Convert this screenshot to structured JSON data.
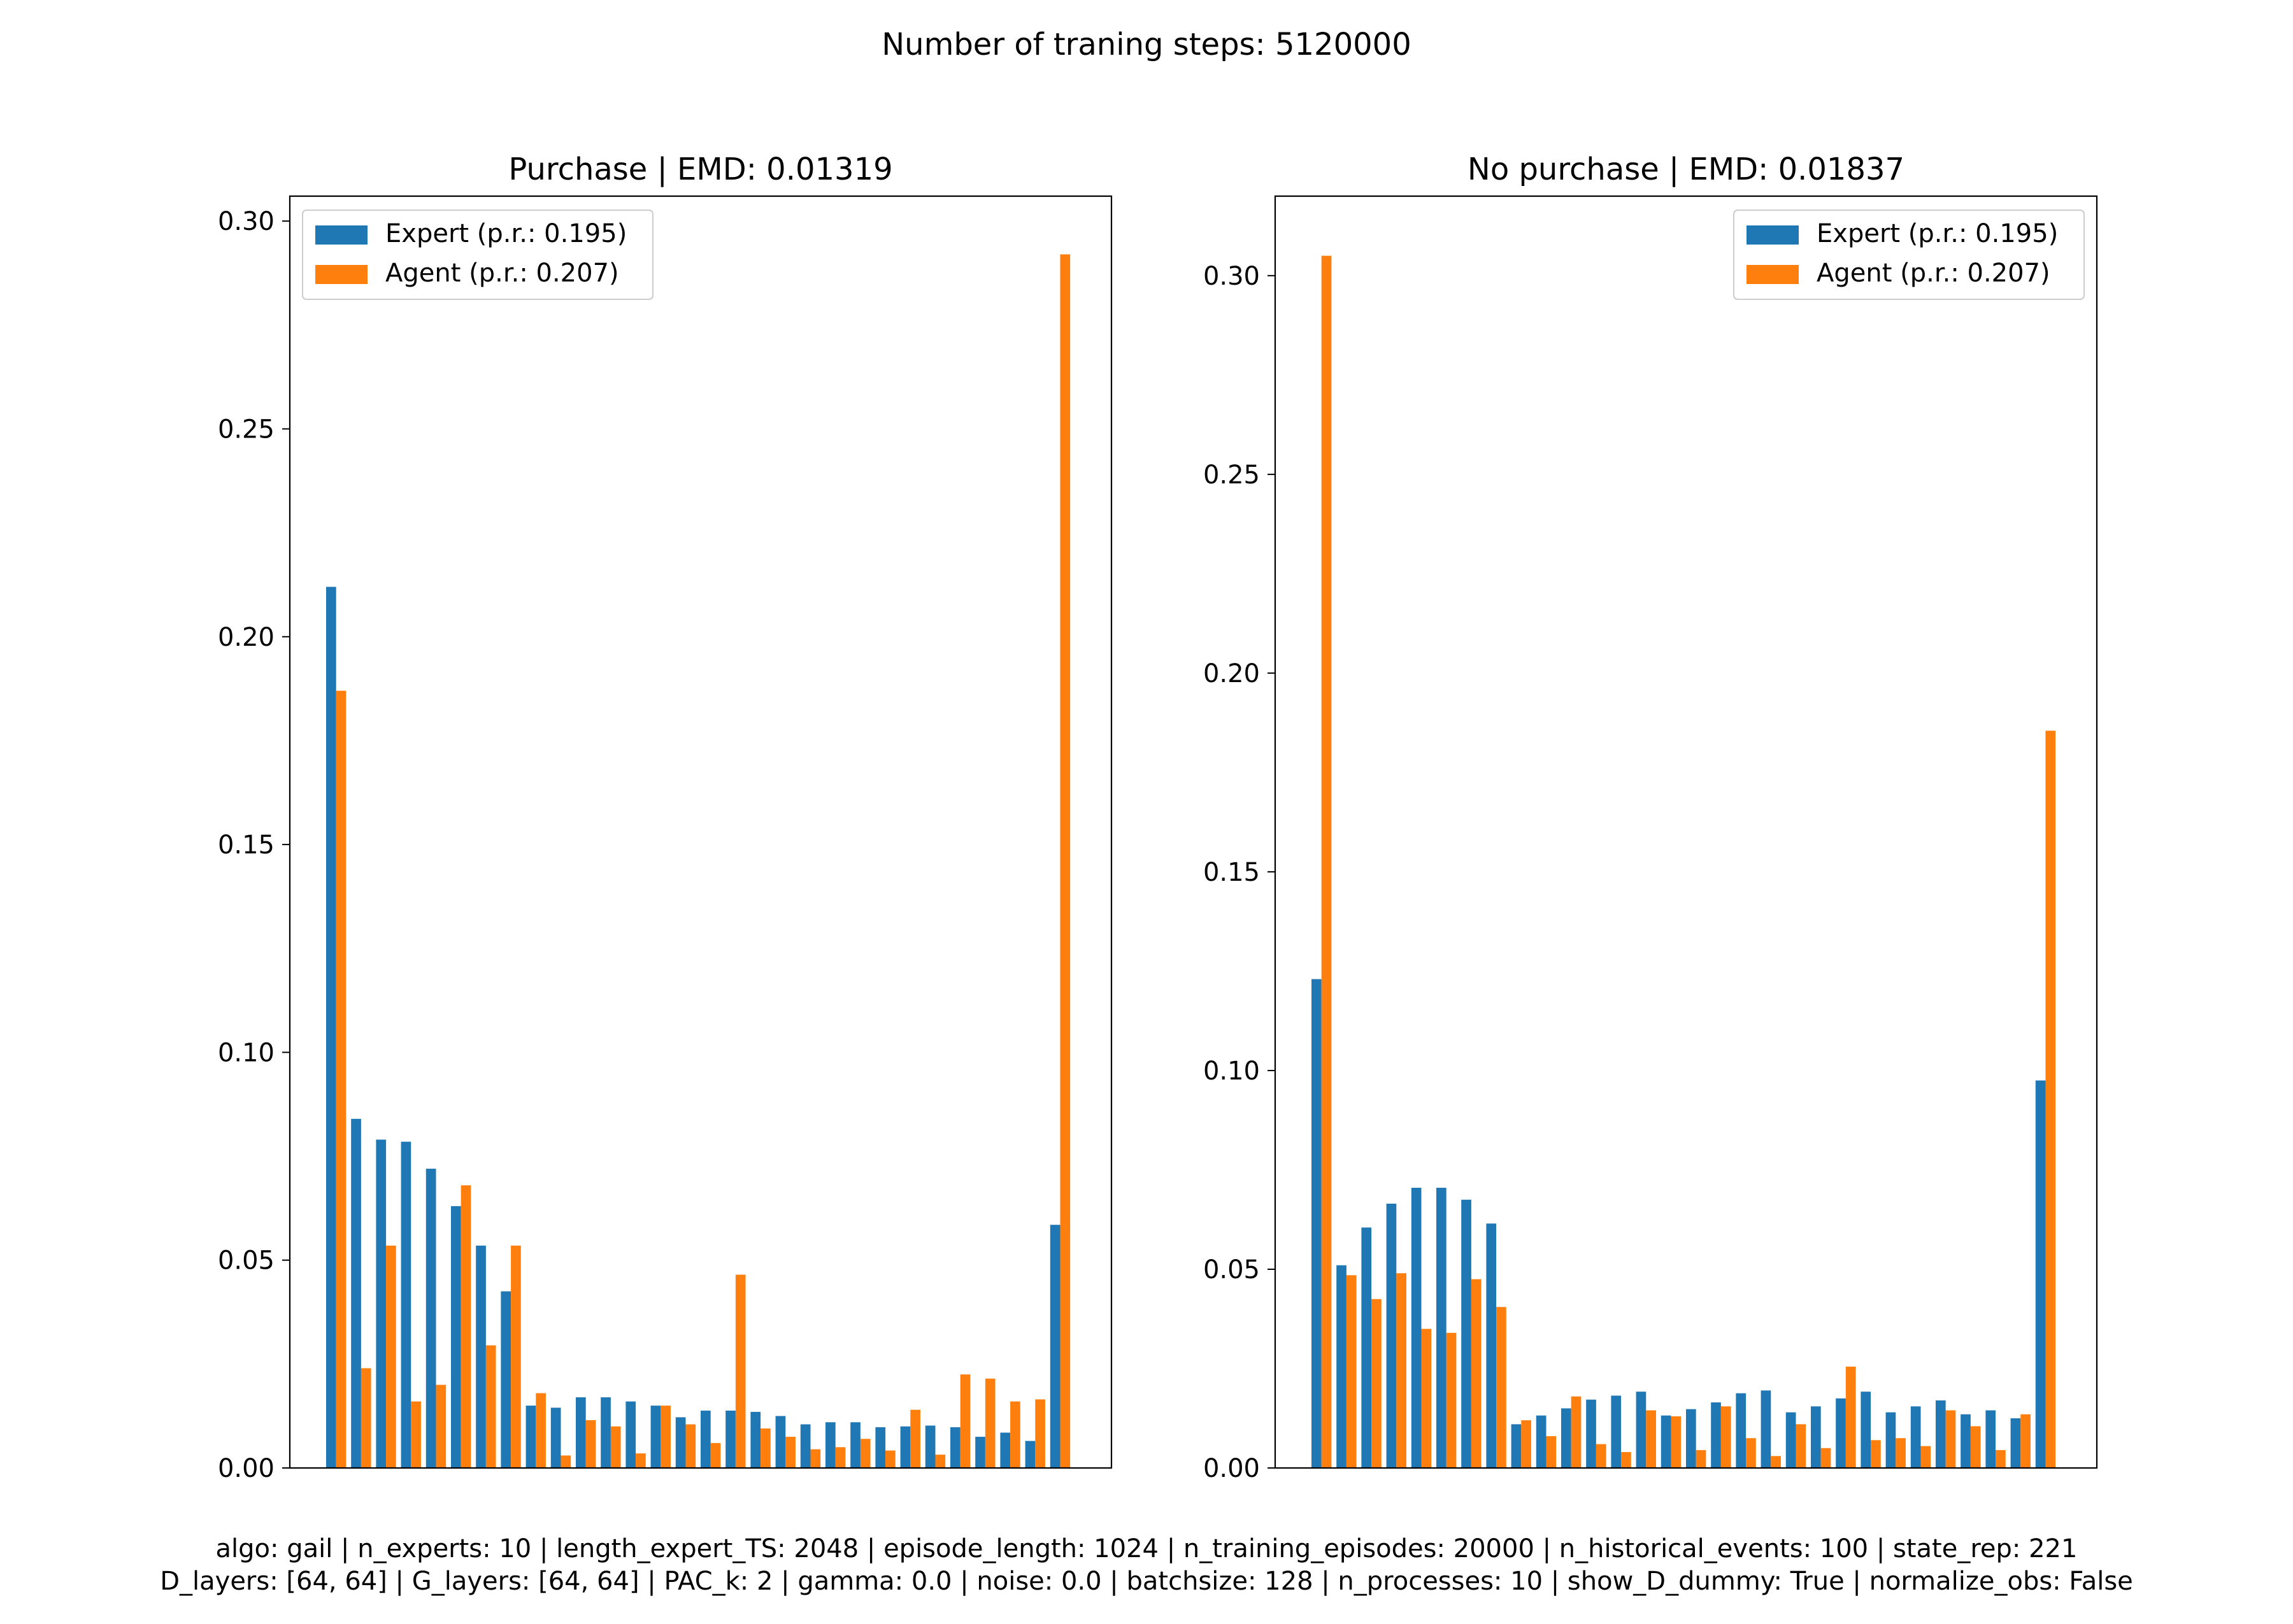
{
  "suptitle": "Number of traning steps: 5120000",
  "footer": {
    "line1": "algo: gail | n_experts: 10 | length_expert_TS: 2048 | episode_length: 1024 | n_training_episodes: 20000 | n_historical_events: 100 | state_rep: 221",
    "line2": "D_layers: [64, 64] | G_layers: [64, 64] | PAC_k: 2 | gamma: 0.0 | noise: 0.0 | batchsize: 128 | n_processes: 10 | show_D_dummy: True | normalize_obs: False"
  },
  "colors": {
    "expert": "#1f77b4",
    "agent": "#ff7f0e"
  },
  "chart_data": [
    {
      "type": "bar",
      "title": "Purchase | EMD: 0.01319",
      "xlabel": "",
      "ylabel": "",
      "ylim": [
        0,
        0.306
      ],
      "yticks": [
        "0.00",
        "0.05",
        "0.10",
        "0.15",
        "0.20",
        "0.25",
        "0.30"
      ],
      "ytick_values": [
        0,
        0.05,
        0.1,
        0.15,
        0.2,
        0.25,
        0.3
      ],
      "legend_position": "top-left",
      "series": [
        {
          "name": "Expert (p.r.: 0.195)",
          "color": "#1f77b4",
          "values": [
            0.212,
            0.084,
            0.079,
            0.0785,
            0.072,
            0.063,
            0.0535,
            0.0425,
            0.015,
            0.0145,
            0.017,
            0.017,
            0.016,
            0.015,
            0.0122,
            0.0138,
            0.0138,
            0.0135,
            0.0125,
            0.0105,
            0.011,
            0.011,
            0.0098,
            0.01,
            0.0102,
            0.0098,
            0.0075,
            0.0085,
            0.0065,
            0.0585
          ]
        },
        {
          "name": "Agent (p.r.: 0.207)",
          "color": "#ff7f0e",
          "values": [
            0.187,
            0.024,
            0.0535,
            0.016,
            0.02,
            0.068,
            0.0295,
            0.0535,
            0.018,
            0.003,
            0.0115,
            0.01,
            0.0035,
            0.015,
            0.0105,
            0.006,
            0.0465,
            0.0095,
            0.0075,
            0.0045,
            0.005,
            0.007,
            0.0042,
            0.014,
            0.0032,
            0.0225,
            0.0215,
            0.016,
            0.0165,
            0.292
          ]
        }
      ]
    },
    {
      "type": "bar",
      "title": "No purchase | EMD: 0.01837",
      "xlabel": "",
      "ylabel": "",
      "ylim": [
        0,
        0.32
      ],
      "yticks": [
        "0.00",
        "0.05",
        "0.10",
        "0.15",
        "0.20",
        "0.25",
        "0.30"
      ],
      "ytick_values": [
        0,
        0.05,
        0.1,
        0.15,
        0.2,
        0.25,
        0.3
      ],
      "legend_position": "top-right",
      "series": [
        {
          "name": "Expert (p.r.: 0.195)",
          "color": "#1f77b4",
          "values": [
            0.123,
            0.051,
            0.0605,
            0.0665,
            0.0705,
            0.0705,
            0.0675,
            0.0615,
            0.011,
            0.0132,
            0.015,
            0.0172,
            0.0182,
            0.0192,
            0.0132,
            0.0148,
            0.0165,
            0.0188,
            0.0195,
            0.014,
            0.0155,
            0.0175,
            0.0192,
            0.014,
            0.0155,
            0.017,
            0.0135,
            0.0145,
            0.0125,
            0.0975
          ]
        },
        {
          "name": "Agent (p.r.: 0.207)",
          "color": "#ff7f0e",
          "values": [
            0.305,
            0.0485,
            0.0425,
            0.049,
            0.035,
            0.034,
            0.0475,
            0.0405,
            0.012,
            0.008,
            0.018,
            0.006,
            0.004,
            0.0145,
            0.013,
            0.0045,
            0.0155,
            0.0075,
            0.003,
            0.011,
            0.005,
            0.0255,
            0.007,
            0.0075,
            0.0055,
            0.0145,
            0.0105,
            0.0045,
            0.0135,
            0.1855
          ]
        }
      ]
    }
  ]
}
